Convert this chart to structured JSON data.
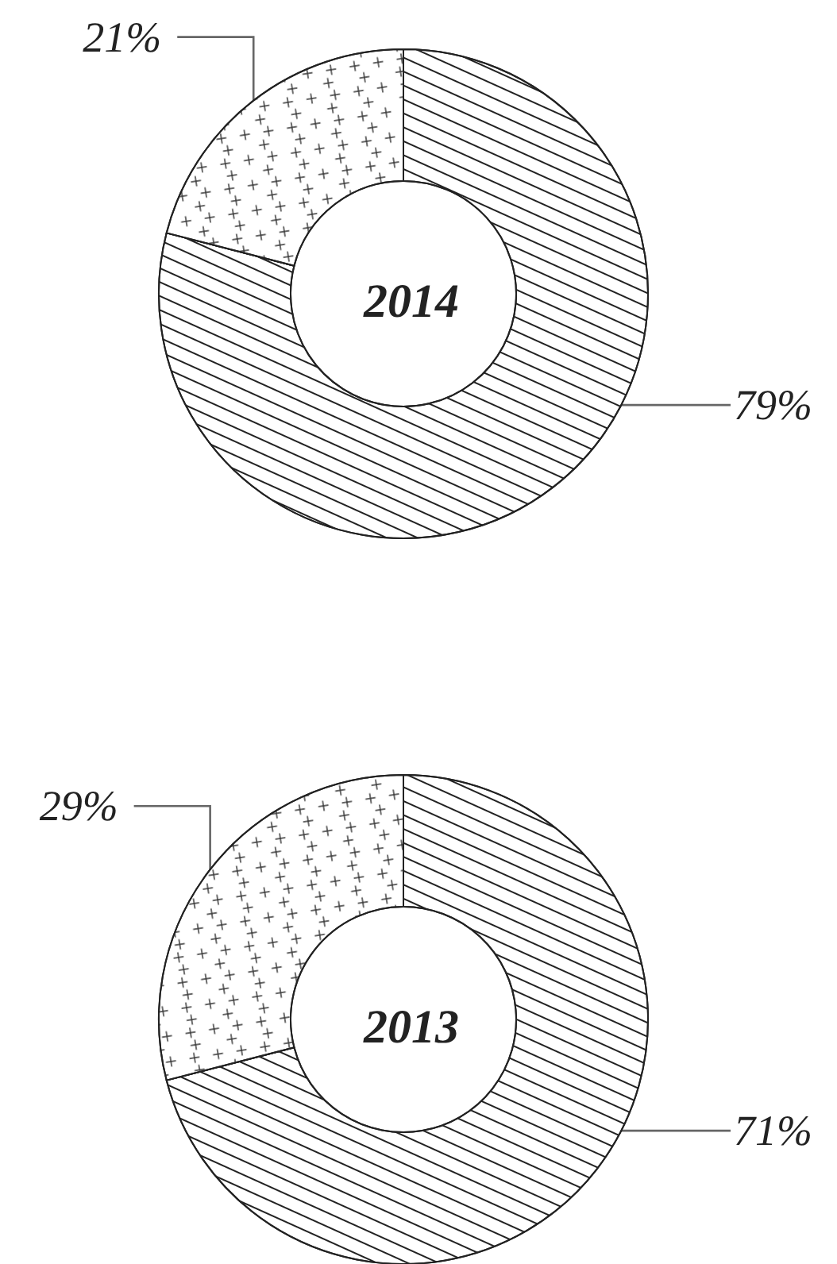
{
  "chart_data": [
    {
      "type": "donut",
      "title": "2014",
      "categories": [
        null,
        null
      ],
      "values": [
        79,
        21
      ],
      "colors": [
        "#ffffff",
        "#ffffff"
      ],
      "value_labels": [
        "79%",
        "21%"
      ]
    },
    {
      "type": "donut",
      "title": "2013",
      "categories": [
        null,
        null
      ],
      "values": [
        71,
        29
      ],
      "colors": [
        "#ffffff",
        "#ffffff"
      ],
      "value_labels": [
        "71%",
        "29%"
      ]
    }
  ]
}
